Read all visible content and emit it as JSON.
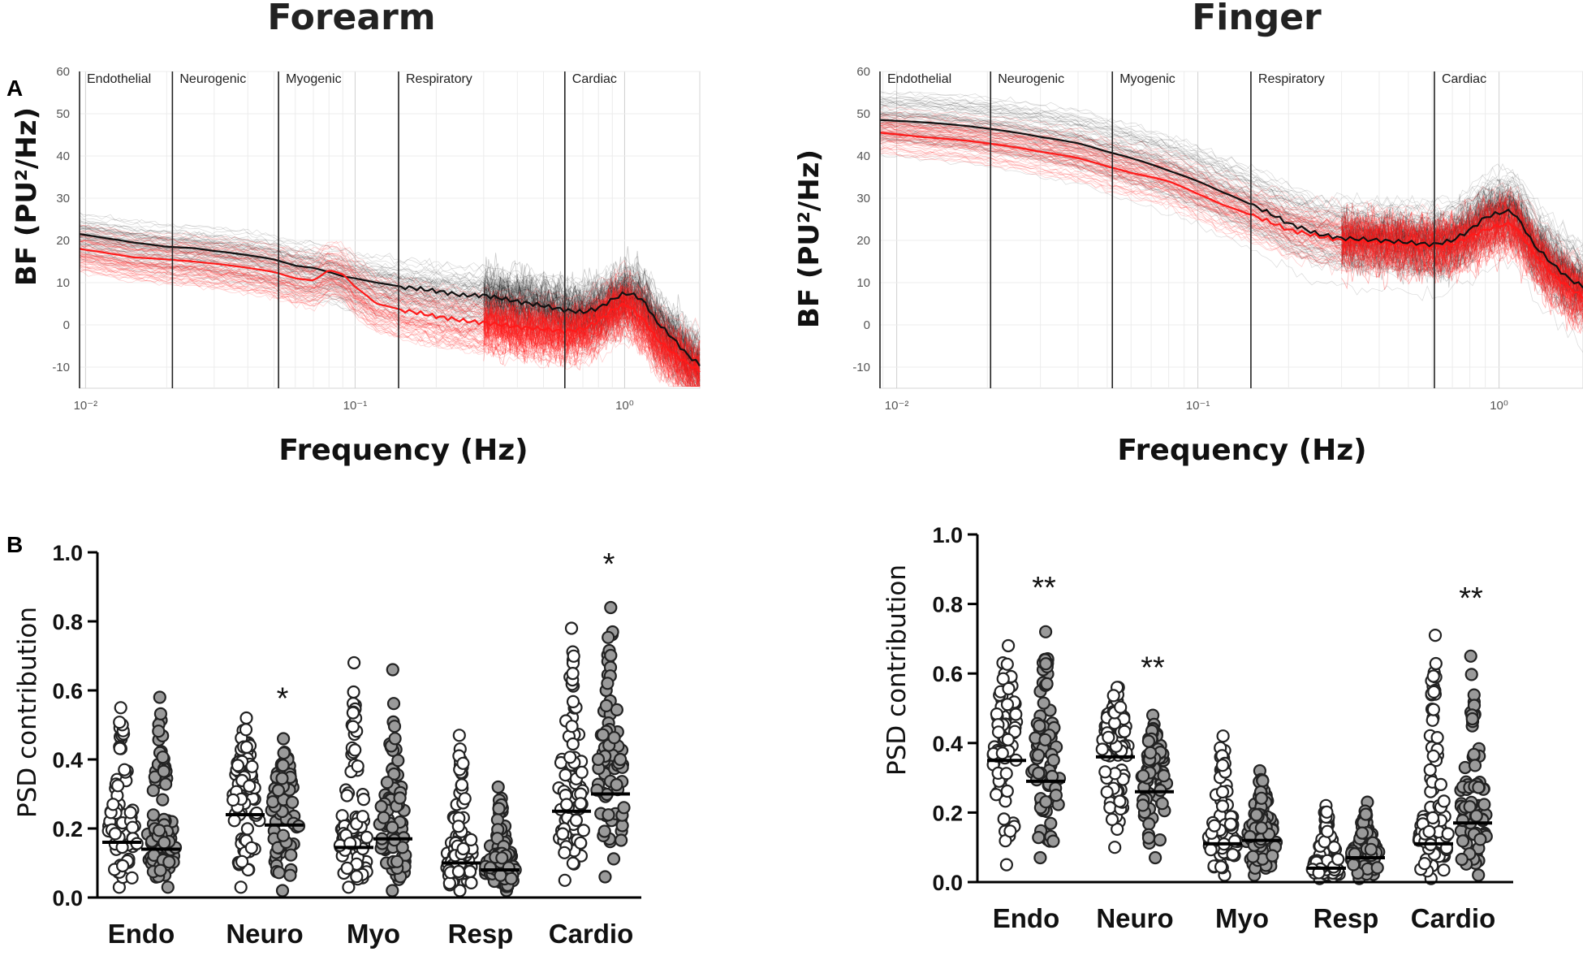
{
  "panel_letters": {
    "a": "A",
    "b": "B"
  },
  "titles": {
    "forearm": "Forearm",
    "finger": "Finger"
  },
  "chart_data": [
    {
      "id": "forearm-spectrum",
      "type": "line",
      "title": "Forearm",
      "xlabel": "Frequency (Hz)",
      "ylabel": "BF (PU²/Hz)",
      "xscale": "log",
      "xlim": [
        0.0095,
        1.9
      ],
      "ylim": [
        -15,
        60
      ],
      "yticks": [
        -10,
        0,
        10,
        20,
        30,
        40,
        50,
        60
      ],
      "xticks": [
        {
          "v": 0.01,
          "label": "10⁻²"
        },
        {
          "v": 0.1,
          "label": "10⁻¹"
        },
        {
          "v": 1,
          "label": "10⁰"
        }
      ],
      "bands": [
        {
          "name": "Endothelial",
          "from": 0.0095
        },
        {
          "name": "Neurogenic",
          "from": 0.021
        },
        {
          "name": "Myogenic",
          "from": 0.052
        },
        {
          "name": "Respiratory",
          "from": 0.145
        },
        {
          "name": "Cardiac",
          "from": 0.6
        }
      ],
      "series": [
        {
          "name": "mean-black",
          "color": "#111111",
          "x": [
            0.0095,
            0.012,
            0.015,
            0.02,
            0.025,
            0.03,
            0.04,
            0.05,
            0.06,
            0.07,
            0.08,
            0.09,
            0.1,
            0.12,
            0.15,
            0.2,
            0.25,
            0.3,
            0.4,
            0.5,
            0.6,
            0.7,
            0.8,
            0.9,
            1.0,
            1.1,
            1.2,
            1.3,
            1.5,
            1.7,
            1.9
          ],
          "y": [
            21.5,
            20.5,
            19.5,
            18.5,
            18.2,
            17.5,
            16.5,
            15.5,
            14.0,
            13.5,
            12.5,
            11.5,
            11.0,
            10.0,
            9.0,
            8.0,
            7.0,
            7.0,
            5.5,
            4.5,
            3.5,
            3.0,
            4.0,
            6.0,
            7.5,
            7.0,
            5.0,
            1.0,
            -3.0,
            -7.0,
            -9.5
          ]
        },
        {
          "name": "mean-red",
          "color": "#ff1a1a",
          "x": [
            0.0095,
            0.012,
            0.015,
            0.02,
            0.025,
            0.03,
            0.04,
            0.05,
            0.06,
            0.07,
            0.08,
            0.09,
            0.1,
            0.12,
            0.15,
            0.2,
            0.25,
            0.3,
            0.4,
            0.5,
            0.6,
            0.7,
            0.8,
            0.9,
            1.0,
            1.1,
            1.2,
            1.3,
            1.5,
            1.7,
            1.9
          ],
          "y": [
            18.0,
            17.0,
            16.0,
            15.5,
            15.0,
            14.5,
            13.5,
            12.5,
            11.0,
            10.5,
            13.0,
            12.0,
            9.0,
            5.0,
            3.5,
            2.0,
            1.0,
            0.5,
            -0.5,
            -1.0,
            -1.5,
            -1.0,
            1.0,
            3.5,
            5.0,
            3.0,
            0.5,
            -3.0,
            -6.5,
            -9.0,
            -11.0
          ]
        }
      ]
    },
    {
      "id": "finger-spectrum",
      "type": "line",
      "title": "Finger",
      "xlabel": "Frequency (Hz)",
      "ylabel": "BF (PU²/Hz)",
      "xscale": "log",
      "xlim": [
        0.0088,
        1.9
      ],
      "ylim": [
        -15,
        60
      ],
      "yticks": [
        -10,
        0,
        10,
        20,
        30,
        40,
        50,
        60
      ],
      "xticks": [
        {
          "v": 0.01,
          "label": "10⁻²"
        },
        {
          "v": 0.1,
          "label": "10⁻¹"
        },
        {
          "v": 1,
          "label": "10⁰"
        }
      ],
      "bands": [
        {
          "name": "Endothelial",
          "from": 0.0088
        },
        {
          "name": "Neurogenic",
          "from": 0.0205
        },
        {
          "name": "Myogenic",
          "from": 0.052
        },
        {
          "name": "Respiratory",
          "from": 0.15
        },
        {
          "name": "Cardiac",
          "from": 0.61
        }
      ],
      "series": [
        {
          "name": "mean-black",
          "color": "#111111",
          "x": [
            0.0088,
            0.012,
            0.015,
            0.02,
            0.025,
            0.03,
            0.04,
            0.05,
            0.06,
            0.07,
            0.08,
            0.1,
            0.12,
            0.15,
            0.2,
            0.25,
            0.3,
            0.4,
            0.5,
            0.6,
            0.7,
            0.8,
            0.9,
            1.0,
            1.1,
            1.2,
            1.3,
            1.5,
            1.7,
            1.9
          ],
          "y": [
            48.5,
            48.0,
            47.5,
            46.5,
            45.5,
            44.5,
            43.0,
            41.0,
            39.5,
            38.0,
            36.5,
            34.0,
            31.5,
            28.5,
            24.0,
            21.5,
            20.5,
            20.0,
            19.5,
            19.0,
            20.0,
            22.5,
            25.5,
            26.5,
            27.0,
            23.5,
            19.0,
            14.5,
            11.0,
            9.0
          ]
        },
        {
          "name": "mean-red",
          "color": "#ff1a1a",
          "x": [
            0.0088,
            0.012,
            0.015,
            0.02,
            0.025,
            0.03,
            0.04,
            0.05,
            0.06,
            0.07,
            0.08,
            0.1,
            0.12,
            0.15,
            0.2,
            0.25,
            0.3,
            0.4,
            0.5,
            0.6,
            0.7,
            0.8,
            0.9,
            1.0,
            1.1,
            1.2,
            1.3,
            1.5,
            1.7,
            1.9
          ],
          "y": [
            45.5,
            44.5,
            44.0,
            43.0,
            42.0,
            41.0,
            39.5,
            37.5,
            36.0,
            35.0,
            34.0,
            31.0,
            28.5,
            26.0,
            22.5,
            21.0,
            20.0,
            19.5,
            19.0,
            18.5,
            19.0,
            21.0,
            22.5,
            23.5,
            24.0,
            21.0,
            17.0,
            12.0,
            9.0,
            6.5
          ]
        }
      ]
    },
    {
      "id": "forearm-psd",
      "type": "scatter",
      "ylabel": "PSD contribution",
      "ylim": [
        0,
        1.0
      ],
      "yticks": [
        "0.0",
        "0.2",
        "0.4",
        "0.6",
        "0.8",
        "1.0"
      ],
      "categories": [
        "Endo",
        "Neuro",
        "Myo",
        "Resp",
        "Cardio"
      ],
      "series": [
        {
          "name": "open",
          "color": "#ffffff",
          "medians": [
            0.16,
            0.24,
            0.145,
            0.1,
            0.25
          ],
          "ranges": [
            [
              0.03,
              0.55
            ],
            [
              0.03,
              0.52
            ],
            [
              0.03,
              0.68
            ],
            [
              0.02,
              0.47
            ],
            [
              0.05,
              0.78
            ]
          ]
        },
        {
          "name": "filled",
          "color": "#9a9a9a",
          "medians": [
            0.14,
            0.21,
            0.17,
            0.08,
            0.3
          ],
          "ranges": [
            [
              0.03,
              0.58
            ],
            [
              0.02,
              0.46
            ],
            [
              0.02,
              0.66
            ],
            [
              0.02,
              0.32
            ],
            [
              0.06,
              0.84
            ]
          ]
        }
      ],
      "significance": [
        {
          "category": "Neuro",
          "text": "*",
          "y": 0.58
        },
        {
          "category": "Cardio",
          "text": "*",
          "y": 0.97
        }
      ]
    },
    {
      "id": "finger-psd",
      "type": "scatter",
      "ylabel": "PSD contribution",
      "ylim": [
        0,
        1.0
      ],
      "yticks": [
        "0.0",
        "0.2",
        "0.4",
        "0.6",
        "0.8",
        "1.0"
      ],
      "categories": [
        "Endo",
        "Neuro",
        "Myo",
        "Resp",
        "Cardio"
      ],
      "series": [
        {
          "name": "open",
          "color": "#ffffff",
          "medians": [
            0.35,
            0.36,
            0.11,
            0.04,
            0.11
          ],
          "ranges": [
            [
              0.05,
              0.68
            ],
            [
              0.1,
              0.56
            ],
            [
              0.02,
              0.42
            ],
            [
              0.01,
              0.22
            ],
            [
              0.01,
              0.71
            ]
          ]
        },
        {
          "name": "filled",
          "color": "#9a9a9a",
          "medians": [
            0.29,
            0.26,
            0.12,
            0.07,
            0.17
          ],
          "ranges": [
            [
              0.07,
              0.72
            ],
            [
              0.07,
              0.48
            ],
            [
              0.02,
              0.32
            ],
            [
              0.01,
              0.23
            ],
            [
              0.02,
              0.65
            ]
          ]
        }
      ],
      "significance": [
        {
          "category": "Endo",
          "text": "**",
          "y": 0.85
        },
        {
          "category": "Neuro",
          "text": "**",
          "y": 0.62
        },
        {
          "category": "Cardio",
          "text": "**",
          "y": 0.82
        }
      ]
    }
  ]
}
